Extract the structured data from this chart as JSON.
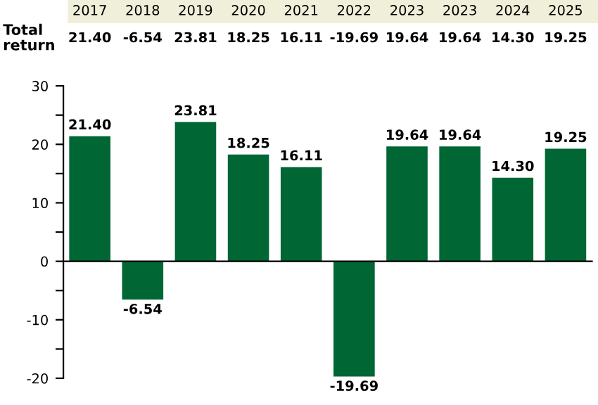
{
  "chart_data": {
    "type": "bar",
    "categories": [
      "2017",
      "2018",
      "2019",
      "2020",
      "2021",
      "2022",
      "2023",
      "2023",
      "2024",
      "2025"
    ],
    "values": [
      21.4,
      -6.54,
      23.81,
      18.25,
      16.11,
      -19.69,
      19.64,
      19.64,
      14.3,
      19.25
    ],
    "color": "#006633",
    "value_labels": [
      "21.40",
      "-6.54",
      "23.81",
      "18.25",
      "16.11",
      "-19.69",
      "19.64",
      "19.64",
      "14.30",
      "19.25"
    ],
    "annotations": [
      "Total\nreturn"
    ],
    "ylim": [
      -20,
      30
    ],
    "yticks": [
      -20,
      {
        "value": -15,
        "label": null
      },
      -10,
      {
        "value": -5,
        "label": null
      },
      0,
      {
        "value": 5,
        "label": null
      },
      10,
      {
        "value": 15,
        "label": null
      },
      20,
      {
        "value": 25,
        "label": null
      },
      30
    ],
    "legend": false
  }
}
